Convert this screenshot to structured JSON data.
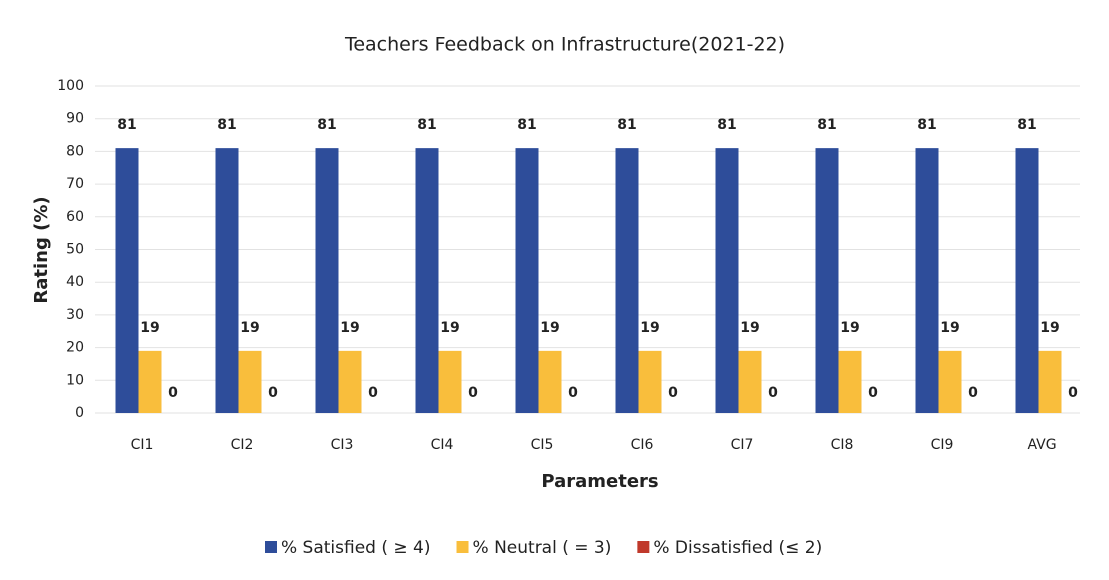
{
  "chart_data": {
    "type": "bar",
    "title": "Teachers Feedback on Infrastructure(2021-22)",
    "x_label": "Parameters",
    "y_label": "Rating (%)",
    "categories": [
      "CI1",
      "CI2",
      "CI3",
      "CI4",
      "CI5",
      "CI6",
      "CI7",
      "CI8",
      "CI9",
      "AVG"
    ],
    "series": [
      {
        "name": "% Satisfied ( ≥ 4)",
        "color": "#2e4d9a",
        "values": [
          81,
          81,
          81,
          81,
          81,
          81,
          81,
          81,
          81,
          81
        ]
      },
      {
        "name": "% Neutral  ( = 3)",
        "color": "#f9be3c",
        "values": [
          19,
          19,
          19,
          19,
          19,
          19,
          19,
          19,
          19,
          19
        ]
      },
      {
        "name": "% Dissatisfied (≤ 2)",
        "color": "#c0392b",
        "values": [
          0,
          0,
          0,
          0,
          0,
          0,
          0,
          0,
          0,
          0
        ]
      }
    ],
    "ylim": [
      0,
      100
    ],
    "yticks": [
      0,
      10,
      20,
      30,
      40,
      50,
      60,
      70,
      80,
      90,
      100
    ],
    "grid": true,
    "legend": "bottom",
    "data_labels": true
  }
}
